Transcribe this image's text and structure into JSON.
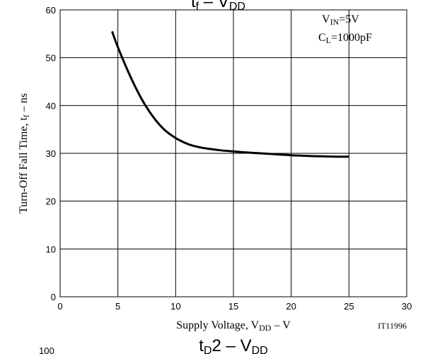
{
  "chart_data": {
    "type": "line",
    "top_title": {
      "main": "t",
      "sub1": "f",
      "mid": " – V",
      "sub2": "DD"
    },
    "bottom_title": {
      "main": "t",
      "sub1": "D",
      "mid": "2 – V",
      "sub2": "DD"
    },
    "stray_label": "100",
    "xlabel": {
      "main": "Supply Voltage, V",
      "sub": "DD",
      "suffix": " – V"
    },
    "ylabel": {
      "main": "Turn-Off Fall Time, t",
      "sub": "f",
      "suffix": " – ns"
    },
    "xlim": [
      0,
      30
    ],
    "ylim": [
      0,
      60
    ],
    "x_ticks": [
      0,
      5,
      10,
      15,
      20,
      25,
      30
    ],
    "y_ticks": [
      0,
      10,
      20,
      30,
      40,
      50,
      60
    ],
    "grid": true,
    "annotations": {
      "vin": {
        "main": "V",
        "sub": "IN",
        "value": "=5V"
      },
      "cl": {
        "main": "C",
        "sub": "L",
        "value": "=1000pF"
      },
      "code": "IT11996"
    },
    "series": [
      {
        "x": [
          4.5,
          5,
          6,
          7,
          8,
          9,
          10,
          11,
          12,
          13,
          14,
          15,
          16,
          17,
          18,
          19,
          20,
          21,
          22,
          23,
          24,
          25
        ],
        "y": [
          55.5,
          52.2,
          46.5,
          41.6,
          37.8,
          35.0,
          33.2,
          32.0,
          31.3,
          30.9,
          30.6,
          30.4,
          30.2,
          30.05,
          29.9,
          29.75,
          29.6,
          29.5,
          29.4,
          29.35,
          29.3,
          29.3
        ]
      }
    ]
  }
}
